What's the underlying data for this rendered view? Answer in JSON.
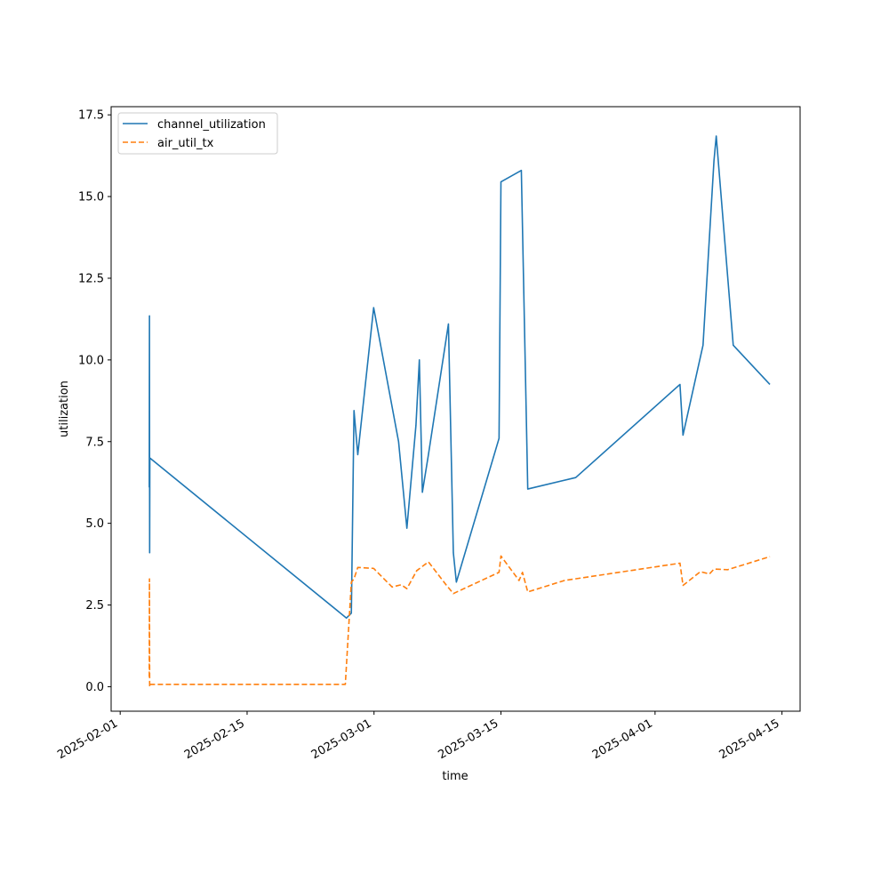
{
  "chart_data": {
    "type": "line",
    "title": "",
    "xlabel": "time",
    "ylabel": "utilization",
    "x_axis_type": "date",
    "xlim": [
      "2025-01-31",
      "2025-04-17"
    ],
    "ylim": [
      -0.75,
      17.75
    ],
    "x_ticks": [
      {
        "date": "2025-02-01",
        "label": "2025-02-01"
      },
      {
        "date": "2025-02-15",
        "label": "2025-02-15"
      },
      {
        "date": "2025-03-01",
        "label": "2025-03-01"
      },
      {
        "date": "2025-03-15",
        "label": "2025-03-15"
      },
      {
        "date": "2025-04-01",
        "label": "2025-04-01"
      },
      {
        "date": "2025-04-15",
        "label": "2025-04-15"
      }
    ],
    "y_ticks": [
      0.0,
      2.5,
      5.0,
      7.5,
      10.0,
      12.5,
      15.0,
      17.5
    ],
    "y_tick_labels": [
      "0.0",
      "2.5",
      "5.0",
      "7.5",
      "10.0",
      "12.5",
      "15.0",
      "17.5"
    ],
    "grid": false,
    "legend_position": "upper-left",
    "series": [
      {
        "name": "channel_utilization",
        "color": "#1f77b4",
        "style": "solid",
        "points": [
          [
            "2025-02-04T05:00",
            6.1
          ],
          [
            "2025-02-04T05:30",
            11.35
          ],
          [
            "2025-02-04T06:00",
            4.1
          ],
          [
            "2025-02-04T06:30",
            7.0
          ],
          [
            "2025-02-25T23:00",
            2.1
          ],
          [
            "2025-02-26T12:00",
            2.25
          ],
          [
            "2025-02-26T19:00",
            8.45
          ],
          [
            "2025-02-27T05:00",
            7.1
          ],
          [
            "2025-02-28T23:00",
            11.6
          ],
          [
            "2025-03-03T17:00",
            7.5
          ],
          [
            "2025-03-04T15:00",
            4.85
          ],
          [
            "2025-03-05T15:00",
            8.0
          ],
          [
            "2025-03-06T00:00",
            10.0
          ],
          [
            "2025-03-06T08:00",
            5.95
          ],
          [
            "2025-03-07T00:00",
            7.1
          ],
          [
            "2025-03-09T05:00",
            11.1
          ],
          [
            "2025-03-09T18:00",
            4.1
          ],
          [
            "2025-03-10T02:00",
            3.2
          ],
          [
            "2025-03-14T19:00",
            7.6
          ],
          [
            "2025-03-15T00:00",
            15.45
          ],
          [
            "2025-03-17T06:00",
            15.8
          ],
          [
            "2025-03-17T23:00",
            6.05
          ],
          [
            "2025-03-23T06:00",
            6.4
          ],
          [
            "2025-04-03T18:00",
            9.25
          ],
          [
            "2025-04-04T02:00",
            7.7
          ],
          [
            "2025-04-06T07:00",
            10.45
          ],
          [
            "2025-04-07T12:00",
            16.1
          ],
          [
            "2025-04-07T18:00",
            16.85
          ],
          [
            "2025-04-09T15:00",
            10.45
          ],
          [
            "2025-04-13T16:00",
            9.25
          ]
        ]
      },
      {
        "name": "air_util_tx",
        "color": "#ff7f0e",
        "style": "dashed",
        "points": [
          [
            "2025-02-04T05:00",
            0.3
          ],
          [
            "2025-02-04T05:30",
            3.3
          ],
          [
            "2025-02-04T06:00",
            0.0
          ],
          [
            "2025-02-04T06:30",
            0.07
          ],
          [
            "2025-02-25T20:00",
            0.07
          ],
          [
            "2025-02-26T12:00",
            3.2
          ],
          [
            "2025-02-26T19:00",
            3.3
          ],
          [
            "2025-02-27T05:00",
            3.65
          ],
          [
            "2025-02-28T23:00",
            3.62
          ],
          [
            "2025-03-03T00:00",
            3.05
          ],
          [
            "2025-03-04T00:00",
            3.12
          ],
          [
            "2025-03-04T15:00",
            3.0
          ],
          [
            "2025-03-05T17:00",
            3.55
          ],
          [
            "2025-03-07T00:00",
            3.82
          ],
          [
            "2025-03-09T00:00",
            3.1
          ],
          [
            "2025-03-09T18:00",
            2.85
          ],
          [
            "2025-03-14T19:00",
            3.5
          ],
          [
            "2025-03-15T00:00",
            4.0
          ],
          [
            "2025-03-17T00:00",
            3.25
          ],
          [
            "2025-03-17T09:00",
            3.5
          ],
          [
            "2025-03-17T23:00",
            2.9
          ],
          [
            "2025-03-22T00:00",
            3.25
          ],
          [
            "2025-04-03T18:00",
            3.78
          ],
          [
            "2025-04-04T02:00",
            3.1
          ],
          [
            "2025-04-06T00:00",
            3.52
          ],
          [
            "2025-04-07T00:00",
            3.45
          ],
          [
            "2025-04-07T12:00",
            3.6
          ],
          [
            "2025-04-09T00:00",
            3.58
          ],
          [
            "2025-04-13T16:00",
            3.98
          ]
        ]
      }
    ]
  }
}
